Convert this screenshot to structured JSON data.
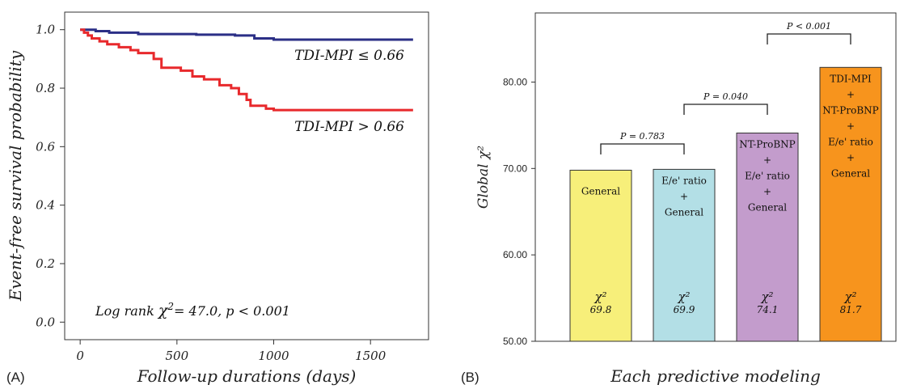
{
  "panel_a": {
    "label": "(A)",
    "chart_data": {
      "type": "line",
      "title": "",
      "xlabel": "Follow-up durations (days)",
      "ylabel": "Event-free survival probability",
      "xlim": [
        -80,
        1800
      ],
      "ylim": [
        -0.06,
        1.06
      ],
      "x_ticks": [
        0,
        500,
        1000,
        1500
      ],
      "x_tick_labels": [
        "0",
        "500",
        "1000",
        "1500"
      ],
      "y_ticks": [
        0.0,
        0.2,
        0.4,
        0.6,
        0.8,
        1.0
      ],
      "y_tick_labels": [
        "0.0",
        "0.2",
        "0.4",
        "0.6",
        "0.8",
        "1.0"
      ],
      "grid": false,
      "series": [
        {
          "name": "TDI-MPI ≤ 0.66",
          "color": "#2b2f86",
          "x": [
            0,
            80,
            150,
            300,
            400,
            600,
            800,
            900,
            1000,
            1720
          ],
          "y": [
            1.0,
            0.995,
            0.99,
            0.985,
            0.985,
            0.983,
            0.98,
            0.97,
            0.966,
            0.966
          ]
        },
        {
          "name": "TDI-MPI > 0.66",
          "color": "#e8292c",
          "x": [
            0,
            20,
            40,
            60,
            100,
            140,
            200,
            260,
            300,
            380,
            420,
            520,
            580,
            640,
            720,
            780,
            820,
            860,
            880,
            960,
            1000,
            1720
          ],
          "y": [
            1.0,
            0.99,
            0.98,
            0.97,
            0.96,
            0.95,
            0.94,
            0.93,
            0.92,
            0.9,
            0.87,
            0.86,
            0.84,
            0.83,
            0.81,
            0.8,
            0.78,
            0.76,
            0.74,
            0.73,
            0.725,
            0.725
          ]
        }
      ],
      "annotation": {
        "prefix": "Log rank ",
        "chi_symbol": "χ",
        "sup": "2",
        "suffix": "= 47.0, p < 0.001"
      }
    }
  },
  "panel_b": {
    "label": "(B)",
    "chart_data": {
      "type": "bar",
      "title": "",
      "xlabel": "Each  predictive modeling",
      "ylabel": "Global χ²",
      "ylim": [
        50,
        88
      ],
      "y_ticks": [
        50,
        60,
        70,
        80
      ],
      "y_tick_labels": [
        "50.00",
        "60.00",
        "70.00",
        "80.00"
      ],
      "grid": false,
      "categories": [
        "General",
        "E/e' ratio + General",
        "NT-ProBNP + E/e' ratio + General",
        "TDI-MPI + NT-ProBNP + E/e' ratio + General"
      ],
      "bar_lines": [
        [
          "General"
        ],
        [
          "E/e' ratio",
          "+",
          "General"
        ],
        [
          "NT-ProBNP",
          "+",
          "E/e' ratio",
          "+",
          "General"
        ],
        [
          "TDI-MPI",
          "+",
          "NT-ProBNP",
          "+",
          "E/e' ratio",
          "+",
          "General"
        ]
      ],
      "values": [
        69.8,
        69.9,
        74.1,
        81.7
      ],
      "value_labels": [
        "69.8",
        "69.9",
        "74.1",
        "81.7"
      ],
      "chi_label": "χ²",
      "colors": [
        "#f7ef7a",
        "#b3dfe6",
        "#c39ccc",
        "#f7941d"
      ],
      "comparisons": [
        {
          "from": 0,
          "to": 1,
          "label": "P = 0.783"
        },
        {
          "from": 1,
          "to": 2,
          "label": "P = 0.040"
        },
        {
          "from": 2,
          "to": 3,
          "label": "P < 0.001"
        }
      ]
    }
  }
}
